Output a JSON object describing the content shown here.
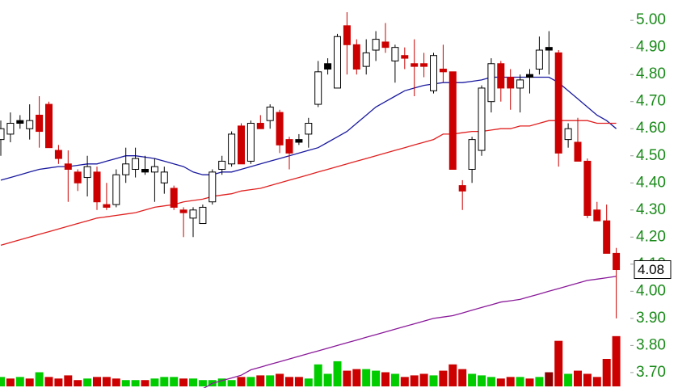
{
  "chart_data": {
    "type": "candlestick",
    "open": [
      4.56,
      4.58,
      4.63,
      4.6,
      4.65,
      4.69,
      4.52,
      4.47,
      4.44,
      4.42,
      4.44,
      4.32,
      4.32,
      4.43,
      4.45,
      4.45,
      4.44,
      4.4,
      4.38,
      4.3,
      4.27,
      4.25,
      4.33,
      4.45,
      4.47,
      4.61,
      4.48,
      4.62,
      4.63,
      4.66,
      4.56,
      4.56,
      4.58,
      4.69,
      4.84,
      4.75,
      4.98,
      4.91,
      4.83,
      4.89,
      4.92,
      4.85,
      4.87,
      4.84,
      4.84,
      4.74,
      4.82,
      4.81,
      4.39,
      4.45,
      4.52,
      4.7,
      4.84,
      4.79,
      4.75,
      4.8,
      4.82,
      4.9,
      4.88,
      4.56,
      4.55,
      4.48,
      4.3,
      4.26,
      4.14
    ],
    "high": [
      4.63,
      4.66,
      4.65,
      4.69,
      4.72,
      4.7,
      4.54,
      4.52,
      4.45,
      4.5,
      4.46,
      4.4,
      4.45,
      4.53,
      4.53,
      4.5,
      4.49,
      4.46,
      4.39,
      4.31,
      4.31,
      4.32,
      4.45,
      4.5,
      4.59,
      4.62,
      4.63,
      4.65,
      4.69,
      4.67,
      4.57,
      4.58,
      4.64,
      4.85,
      4.86,
      4.95,
      5.03,
      4.93,
      4.93,
      4.96,
      4.99,
      4.91,
      4.9,
      4.93,
      4.88,
      4.88,
      4.91,
      4.81,
      4.41,
      4.57,
      4.76,
      4.86,
      4.85,
      4.82,
      4.8,
      4.82,
      4.94,
      4.96,
      4.89,
      4.62,
      4.64,
      4.49,
      4.33,
      4.32,
      4.16
    ],
    "low": [
      4.5,
      4.55,
      4.6,
      4.56,
      4.53,
      4.53,
      4.47,
      4.33,
      4.37,
      4.35,
      4.3,
      4.3,
      4.31,
      4.4,
      4.42,
      4.43,
      4.33,
      4.36,
      4.3,
      4.2,
      4.2,
      4.25,
      4.32,
      4.43,
      4.46,
      4.47,
      4.47,
      4.6,
      4.6,
      4.51,
      4.45,
      4.54,
      4.53,
      4.68,
      4.8,
      4.75,
      4.8,
      4.8,
      4.8,
      4.85,
      4.88,
      4.77,
      4.82,
      4.72,
      4.79,
      4.73,
      4.77,
      4.45,
      4.3,
      4.4,
      4.5,
      4.66,
      4.7,
      4.67,
      4.66,
      4.73,
      4.8,
      4.8,
      4.46,
      4.53,
      4.48,
      4.27,
      4.26,
      4.14,
      3.9
    ],
    "close": [
      4.6,
      4.62,
      4.62,
      4.63,
      4.59,
      4.53,
      4.49,
      4.45,
      4.4,
      4.46,
      4.33,
      4.31,
      4.43,
      4.47,
      4.49,
      4.44,
      4.46,
      4.44,
      4.31,
      4.29,
      4.3,
      4.31,
      4.44,
      4.48,
      4.58,
      4.47,
      4.62,
      4.6,
      4.68,
      4.54,
      4.51,
      4.55,
      4.62,
      4.81,
      4.82,
      4.94,
      4.91,
      4.82,
      4.88,
      4.93,
      4.9,
      4.9,
      4.86,
      4.83,
      4.83,
      4.87,
      4.81,
      4.45,
      4.37,
      4.56,
      4.75,
      4.84,
      4.75,
      4.75,
      4.78,
      4.79,
      4.89,
      4.89,
      4.51,
      4.6,
      4.48,
      4.28,
      4.26,
      4.14,
      4.08
    ],
    "candle_colors": [
      "#ffffff",
      "#ffffff",
      "#000000",
      "#ffffff",
      "#cc0000",
      "#cc0000",
      "#cc0000",
      "#cc0000",
      "#cc0000",
      "#ffffff",
      "#cc0000",
      "#cc0000",
      "#ffffff",
      "#ffffff",
      "#ffffff",
      "#000000",
      "#ffffff",
      "#ffffff",
      "#cc0000",
      "#cc0000",
      "#ffffff",
      "#ffffff",
      "#ffffff",
      "#ffffff",
      "#ffffff",
      "#cc0000",
      "#ffffff",
      "#cc0000",
      "#ffffff",
      "#cc0000",
      "#cc0000",
      "#000000",
      "#ffffff",
      "#ffffff",
      "#000000",
      "#ffffff",
      "#cc0000",
      "#cc0000",
      "#ffffff",
      "#ffffff",
      "#cc0000",
      "#ffffff",
      "#cc0000",
      "#cc0000",
      "#cc0000",
      "#ffffff",
      "#cc0000",
      "#cc0000",
      "#cc0000",
      "#ffffff",
      "#ffffff",
      "#ffffff",
      "#cc0000",
      "#cc0000",
      "#ffffff",
      "#000000",
      "#ffffff",
      "#000000",
      "#cc0000",
      "#ffffff",
      "#cc0000",
      "#cc0000",
      "#cc0000",
      "#cc0000",
      "#cc0000"
    ],
    "overlays": [
      {
        "color": "#1a1aa0",
        "values": [
          4.41,
          4.42,
          4.43,
          4.44,
          4.45,
          4.455,
          4.46,
          4.46,
          4.465,
          4.47,
          4.47,
          4.48,
          4.49,
          4.5,
          4.5,
          4.495,
          4.49,
          4.48,
          4.47,
          4.46,
          4.44,
          4.43,
          4.43,
          4.44,
          4.44,
          4.45,
          4.46,
          4.47,
          4.48,
          4.49,
          4.5,
          4.51,
          4.52,
          4.53,
          4.55,
          4.57,
          4.59,
          4.62,
          4.65,
          4.68,
          4.7,
          4.72,
          4.74,
          4.75,
          4.76,
          4.765,
          4.77,
          4.77,
          4.77,
          4.775,
          4.78,
          4.79,
          4.79,
          4.79,
          4.79,
          4.79,
          4.79,
          4.79,
          4.77,
          4.74,
          4.71,
          4.68,
          4.65,
          4.63,
          4.6
        ]
      },
      {
        "color": "#e02020",
        "values": [
          4.17,
          4.18,
          4.19,
          4.2,
          4.21,
          4.22,
          4.23,
          4.24,
          4.25,
          4.26,
          4.27,
          4.275,
          4.28,
          4.285,
          4.29,
          4.3,
          4.31,
          4.315,
          4.32,
          4.33,
          4.335,
          4.34,
          4.35,
          4.355,
          4.36,
          4.37,
          4.375,
          4.38,
          4.39,
          4.4,
          4.41,
          4.42,
          4.43,
          4.44,
          4.45,
          4.46,
          4.47,
          4.48,
          4.49,
          4.5,
          4.51,
          4.52,
          4.53,
          4.54,
          4.55,
          4.56,
          4.58,
          4.58,
          4.585,
          4.59,
          4.59,
          4.595,
          4.6,
          4.6,
          4.61,
          4.61,
          4.62,
          4.63,
          4.63,
          4.63,
          4.63,
          4.63,
          4.62,
          4.62,
          4.62
        ]
      },
      {
        "color": "#8a1a9a",
        "values": [
          null,
          null,
          null,
          null,
          null,
          null,
          null,
          null,
          null,
          null,
          null,
          null,
          null,
          null,
          null,
          null,
          null,
          null,
          null,
          null,
          null,
          3.64,
          3.66,
          3.67,
          3.68,
          3.69,
          3.71,
          3.72,
          3.73,
          3.74,
          3.75,
          3.76,
          3.77,
          3.78,
          3.79,
          3.8,
          3.81,
          3.82,
          3.83,
          3.84,
          3.85,
          3.86,
          3.87,
          3.88,
          3.89,
          3.9,
          3.905,
          3.91,
          3.92,
          3.93,
          3.94,
          3.95,
          3.96,
          3.965,
          3.97,
          3.98,
          3.99,
          4.0,
          4.01,
          4.02,
          4.03,
          4.04,
          4.045,
          4.05,
          4.055
        ]
      }
    ],
    "volume": {
      "lim": [
        0,
        70
      ],
      "values": [
        12,
        10,
        12,
        10,
        18,
        12,
        10,
        14,
        8,
        10,
        12,
        12,
        10,
        8,
        8,
        8,
        10,
        12,
        12,
        10,
        10,
        8,
        8,
        10,
        8,
        12,
        12,
        14,
        14,
        16,
        12,
        12,
        10,
        28,
        16,
        32,
        20,
        22,
        22,
        20,
        18,
        16,
        12,
        14,
        16,
        14,
        20,
        28,
        22,
        16,
        14,
        12,
        10,
        12,
        12,
        10,
        12,
        18,
        58,
        16,
        20,
        16,
        12,
        35,
        64
      ],
      "colors": [
        "#00cc00",
        "#cc0000",
        "#00cc00",
        "#cc0000",
        "#00cc00",
        "#cc0000",
        "#cc0000",
        "#cc0000",
        "#cc0000",
        "#00cc00",
        "#cc0000",
        "#cc0000",
        "#cc0000",
        "#00cc00",
        "#00cc00",
        "#cc0000",
        "#00cc00",
        "#00cc00",
        "#00cc00",
        "#cc0000",
        "#00cc00",
        "#00cc00",
        "#00cc00",
        "#00cc00",
        "#00cc00",
        "#cc0000",
        "#00cc00",
        "#cc0000",
        "#00cc00",
        "#cc0000",
        "#cc0000",
        "#cc0000",
        "#00cc00",
        "#00cc00",
        "#00cc00",
        "#00cc00",
        "#cc0000",
        "#cc0000",
        "#00cc00",
        "#00cc00",
        "#cc0000",
        "#00cc00",
        "#cc0000",
        "#cc0000",
        "#cc0000",
        "#00cc00",
        "#cc0000",
        "#cc0000",
        "#cc0000",
        "#00cc00",
        "#00cc00",
        "#00cc00",
        "#cc0000",
        "#cc0000",
        "#00cc00",
        "#cc0000",
        "#00cc00",
        "#8b0000",
        "#cc0000",
        "#00cc00",
        "#cc0000",
        "#cc0000",
        "#cc0000",
        "#cc0000",
        "#cc0000"
      ]
    },
    "ylim": [
      3.643,
      5.075
    ],
    "yticks": [
      {
        "value": 3.7,
        "label": "3.70"
      },
      {
        "value": 3.8,
        "label": "3.80"
      },
      {
        "value": 3.9,
        "label": "3.90"
      },
      {
        "value": 4.0,
        "label": "4.00"
      },
      {
        "value": 4.1,
        "label": "4.10"
      },
      {
        "value": 4.2,
        "label": "4.20"
      },
      {
        "value": 4.3,
        "label": "4.30"
      },
      {
        "value": 4.4,
        "label": "4.40"
      },
      {
        "value": 4.5,
        "label": "4.50"
      },
      {
        "value": 4.6,
        "label": "4.60"
      },
      {
        "value": 4.7,
        "label": "4.70"
      },
      {
        "value": 4.8,
        "label": "4.80"
      },
      {
        "value": 4.9,
        "label": "4.90"
      },
      {
        "value": 5.0,
        "label": "5.00"
      }
    ],
    "last_price": {
      "value": 4.08,
      "label": "4.08"
    }
  }
}
